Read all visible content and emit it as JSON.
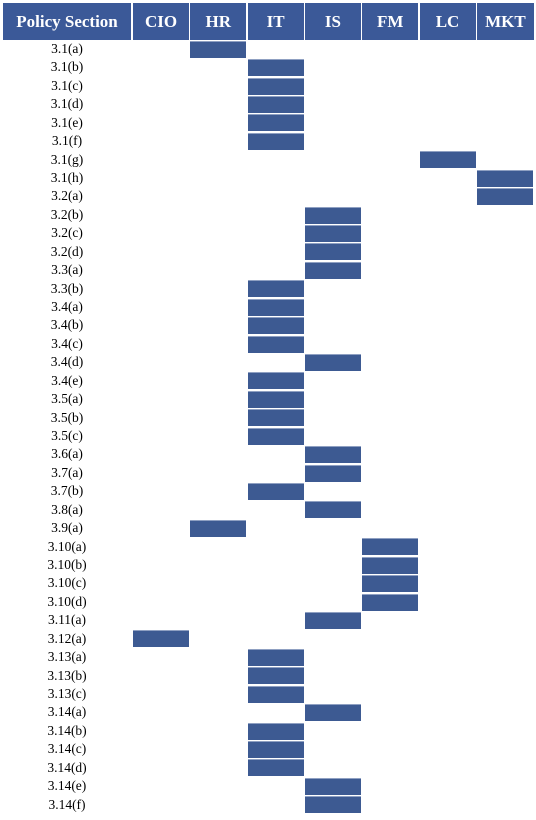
{
  "table": {
    "header": [
      "Policy Section",
      "CIO",
      "HR",
      "IT",
      "IS",
      "FM",
      "LC",
      "MKT"
    ],
    "rows": [
      {
        "section": "3.1(a)",
        "owner": 1
      },
      {
        "section": "3.1(b)",
        "owner": 2
      },
      {
        "section": "3.1(c)",
        "owner": 2
      },
      {
        "section": "3.1(d)",
        "owner": 2
      },
      {
        "section": "3.1(e)",
        "owner": 2
      },
      {
        "section": "3.1(f)",
        "owner": 2
      },
      {
        "section": "3.1(g)",
        "owner": 5
      },
      {
        "section": "3.1(h)",
        "owner": 6
      },
      {
        "section": "3.2(a)",
        "owner": 6
      },
      {
        "section": "3.2(b)",
        "owner": 3
      },
      {
        "section": "3.2(c)",
        "owner": 3
      },
      {
        "section": "3.2(d)",
        "owner": 3
      },
      {
        "section": "3.3(a)",
        "owner": 3
      },
      {
        "section": "3.3(b)",
        "owner": 2
      },
      {
        "section": "3.4(a)",
        "owner": 2
      },
      {
        "section": "3.4(b)",
        "owner": 2
      },
      {
        "section": "3.4(c)",
        "owner": 2
      },
      {
        "section": "3.4(d)",
        "owner": 3
      },
      {
        "section": "3.4(e)",
        "owner": 2
      },
      {
        "section": "3.5(a)",
        "owner": 2
      },
      {
        "section": "3.5(b)",
        "owner": 2
      },
      {
        "section": "3.5(c)",
        "owner": 2
      },
      {
        "section": "3.6(a)",
        "owner": 3
      },
      {
        "section": "3.7(a)",
        "owner": 3
      },
      {
        "section": "3.7(b)",
        "owner": 2
      },
      {
        "section": "3.8(a)",
        "owner": 3
      },
      {
        "section": "3.9(a)",
        "owner": 1
      },
      {
        "section": "3.10(a)",
        "owner": 4
      },
      {
        "section": "3.10(b)",
        "owner": 4
      },
      {
        "section": "3.10(c)",
        "owner": 4
      },
      {
        "section": "3.10(d)",
        "owner": 4
      },
      {
        "section": "3.11(a)",
        "owner": 3
      },
      {
        "section": "3.12(a)",
        "owner": 0
      },
      {
        "section": "3.13(a)",
        "owner": 2
      },
      {
        "section": "3.13(b)",
        "owner": 2
      },
      {
        "section": "3.13(c)",
        "owner": 2
      },
      {
        "section": "3.14(a)",
        "owner": 3
      },
      {
        "section": "3.14(b)",
        "owner": 2
      },
      {
        "section": "3.14(c)",
        "owner": 2
      },
      {
        "section": "3.14(d)",
        "owner": 2
      },
      {
        "section": "3.14(e)",
        "owner": 3
      },
      {
        "section": "3.14(f)",
        "owner": 3
      }
    ]
  }
}
